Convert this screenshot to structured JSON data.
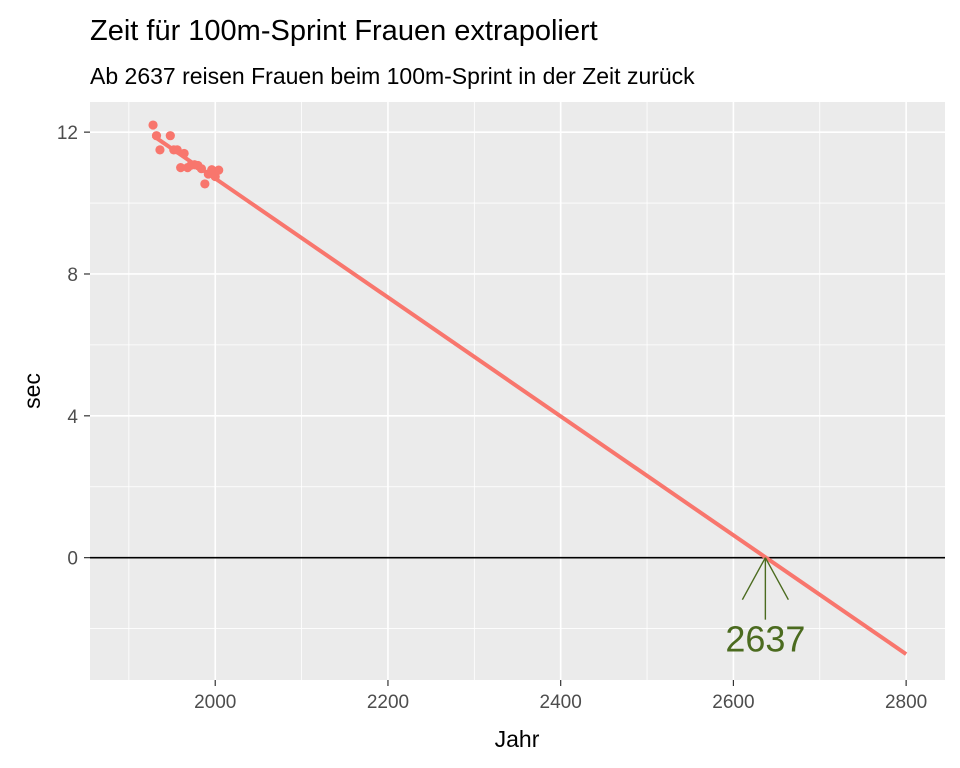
{
  "chart_data": {
    "type": "scatter",
    "title": "Zeit für 100m-Sprint Frauen extrapoliert",
    "subtitle": "Ab 2637 reisen Frauen beim 100m-Sprint in der Zeit zurück",
    "xlabel": "Jahr",
    "ylabel": "sec",
    "xlim": [
      1855,
      2845
    ],
    "ylim": [
      -3.45,
      12.85
    ],
    "x_ticks": [
      2000,
      2200,
      2400,
      2600,
      2800
    ],
    "x_tick_labels": [
      "2000",
      "2200",
      "2400",
      "2600",
      "2800"
    ],
    "y_ticks": [
      0,
      4,
      8,
      12
    ],
    "y_tick_labels": [
      "0",
      "4",
      "8",
      "12"
    ],
    "grid": true,
    "legend": "none",
    "points_color": "#F8766D",
    "line_color": "#F8766D",
    "points": [
      {
        "x": 1928,
        "y": 12.2
      },
      {
        "x": 1932,
        "y": 11.9
      },
      {
        "x": 1936,
        "y": 11.5
      },
      {
        "x": 1948,
        "y": 11.9
      },
      {
        "x": 1952,
        "y": 11.5
      },
      {
        "x": 1956,
        "y": 11.5
      },
      {
        "x": 1960,
        "y": 11.0
      },
      {
        "x": 1964,
        "y": 11.4
      },
      {
        "x": 1968,
        "y": 11.0
      },
      {
        "x": 1972,
        "y": 11.07
      },
      {
        "x": 1976,
        "y": 11.08
      },
      {
        "x": 1980,
        "y": 11.06
      },
      {
        "x": 1984,
        "y": 10.97
      },
      {
        "x": 1988,
        "y": 10.54
      },
      {
        "x": 1992,
        "y": 10.82
      },
      {
        "x": 1996,
        "y": 10.94
      },
      {
        "x": 2000,
        "y": 10.75
      },
      {
        "x": 2004,
        "y": 10.93
      }
    ],
    "regression_line": [
      {
        "x": 1928,
        "y": 11.9
      },
      {
        "x": 2800,
        "y": -2.72
      }
    ],
    "reference_line": {
      "y": 0,
      "color": "#000000"
    },
    "annotation": {
      "text": "2637",
      "x": 2637,
      "y": 0,
      "color": "#4B6B1F"
    }
  }
}
